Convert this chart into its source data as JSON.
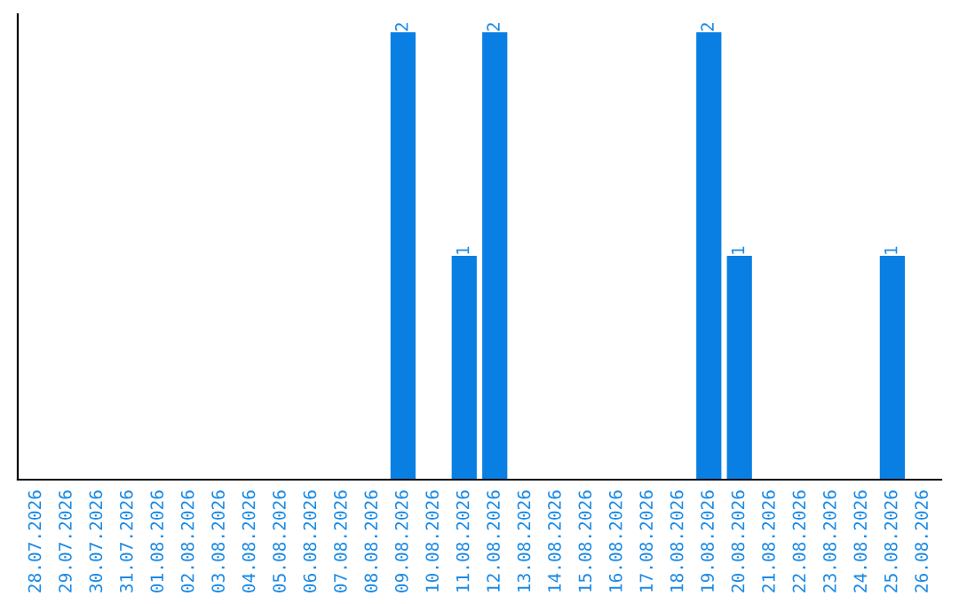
{
  "chart_data": {
    "type": "bar",
    "categories": [
      "28.07.2026",
      "29.07.2026",
      "30.07.2026",
      "31.07.2026",
      "01.08.2026",
      "02.08.2026",
      "03.08.2026",
      "04.08.2026",
      "05.08.2026",
      "06.08.2026",
      "07.08.2026",
      "08.08.2026",
      "09.08.2026",
      "10.08.2026",
      "11.08.2026",
      "12.08.2026",
      "13.08.2026",
      "14.08.2026",
      "15.08.2026",
      "16.08.2026",
      "17.08.2026",
      "18.08.2026",
      "19.08.2026",
      "20.08.2026",
      "21.08.2026",
      "22.08.2026",
      "23.08.2026",
      "24.08.2026",
      "25.08.2026",
      "26.08.2026"
    ],
    "values": [
      null,
      null,
      null,
      null,
      null,
      null,
      null,
      null,
      null,
      null,
      null,
      null,
      2,
      null,
      1,
      2,
      null,
      null,
      null,
      null,
      null,
      null,
      2,
      1,
      null,
      null,
      null,
      null,
      1,
      null
    ],
    "data_labels": true,
    "color": "#0a7fe3",
    "tick_labels": "x",
    "grid": false,
    "legend": false
  }
}
